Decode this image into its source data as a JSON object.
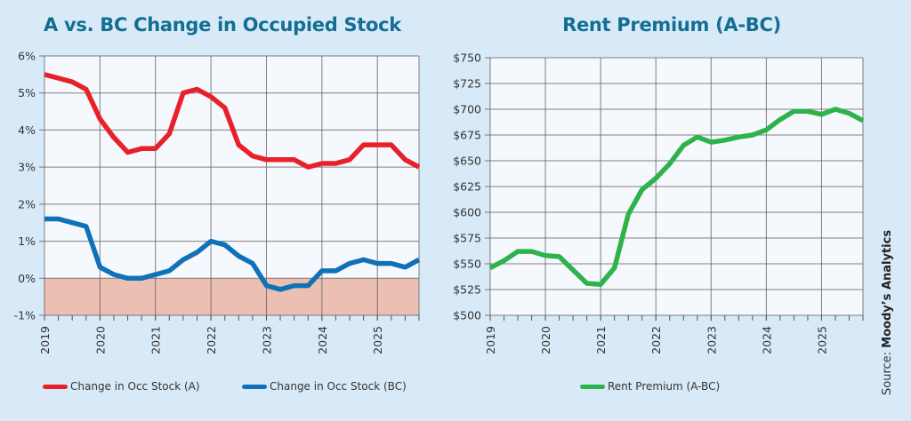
{
  "chart_data": [
    {
      "type": "line",
      "title": "A vs. BC Change in Occupied Stock",
      "xlabel": "",
      "ylabel": "",
      "x_ticks": [
        "2019",
        "2020",
        "2021",
        "2022",
        "2023",
        "2024",
        "2025"
      ],
      "x_start": 2019,
      "x_end": 2025.75,
      "x_step_per_point": 0.25,
      "y_ticks": [
        "6%",
        "5%",
        "4%",
        "3%",
        "2%",
        "1%",
        "0%",
        "-1%"
      ],
      "y_tick_values": [
        6,
        5,
        4,
        3,
        2,
        1,
        0,
        -1
      ],
      "ylim": [
        -1,
        6
      ],
      "grid": true,
      "negative_region_shaded": true,
      "legend_position": "bottom",
      "series": [
        {
          "name": "Change in Occ Stock (A)",
          "color": "#e8202a",
          "values": [
            5.5,
            5.4,
            5.3,
            5.1,
            4.3,
            3.8,
            3.4,
            3.5,
            3.5,
            3.9,
            5.0,
            5.1,
            4.9,
            4.6,
            3.6,
            3.3,
            3.2,
            3.2,
            3.2,
            3.0,
            3.1,
            3.1,
            3.2,
            3.6,
            3.6,
            3.6,
            3.2,
            3.0
          ]
        },
        {
          "name": "Change in Occ Stock (BC)",
          "color": "#0f72b8",
          "values": [
            1.6,
            1.6,
            1.5,
            1.4,
            0.3,
            0.1,
            0.0,
            0.0,
            0.1,
            0.2,
            0.5,
            0.7,
            1.0,
            0.9,
            0.6,
            0.4,
            -0.2,
            -0.3,
            -0.2,
            -0.2,
            0.2,
            0.2,
            0.4,
            0.5,
            0.4,
            0.4,
            0.3,
            0.5
          ]
        }
      ]
    },
    {
      "type": "line",
      "title": "Rent Premium (A-BC)",
      "xlabel": "",
      "ylabel": "",
      "x_ticks": [
        "2019",
        "2020",
        "2021",
        "2022",
        "2023",
        "2024",
        "2025"
      ],
      "x_start": 2019,
      "x_end": 2025.75,
      "x_step_per_point": 0.25,
      "y_ticks": [
        "$750",
        "$725",
        "$700",
        "$675",
        "$650",
        "$625",
        "$600",
        "$575",
        "$550",
        "$525",
        "$500"
      ],
      "y_tick_values": [
        750,
        725,
        700,
        675,
        650,
        625,
        600,
        575,
        550,
        525,
        500
      ],
      "ylim": [
        500,
        750
      ],
      "grid": true,
      "legend_position": "bottom",
      "series": [
        {
          "name": "Rent Premium (A-BC)",
          "color": "#2db34a",
          "values": [
            546,
            553,
            562,
            562,
            558,
            557,
            544,
            531,
            530,
            546,
            598,
            622,
            633,
            647,
            665,
            673,
            668,
            670,
            673,
            675,
            680,
            690,
            698,
            698,
            695,
            700,
            696,
            689
          ]
        }
      ]
    }
  ],
  "source": {
    "prefix": "Source: ",
    "name": "Moody’s Analytics"
  },
  "colors": {
    "background": "#d8eaf8",
    "plot_background": "#f5f9fd",
    "negative_shade": "#ecbfb3",
    "title": "#136f92"
  }
}
